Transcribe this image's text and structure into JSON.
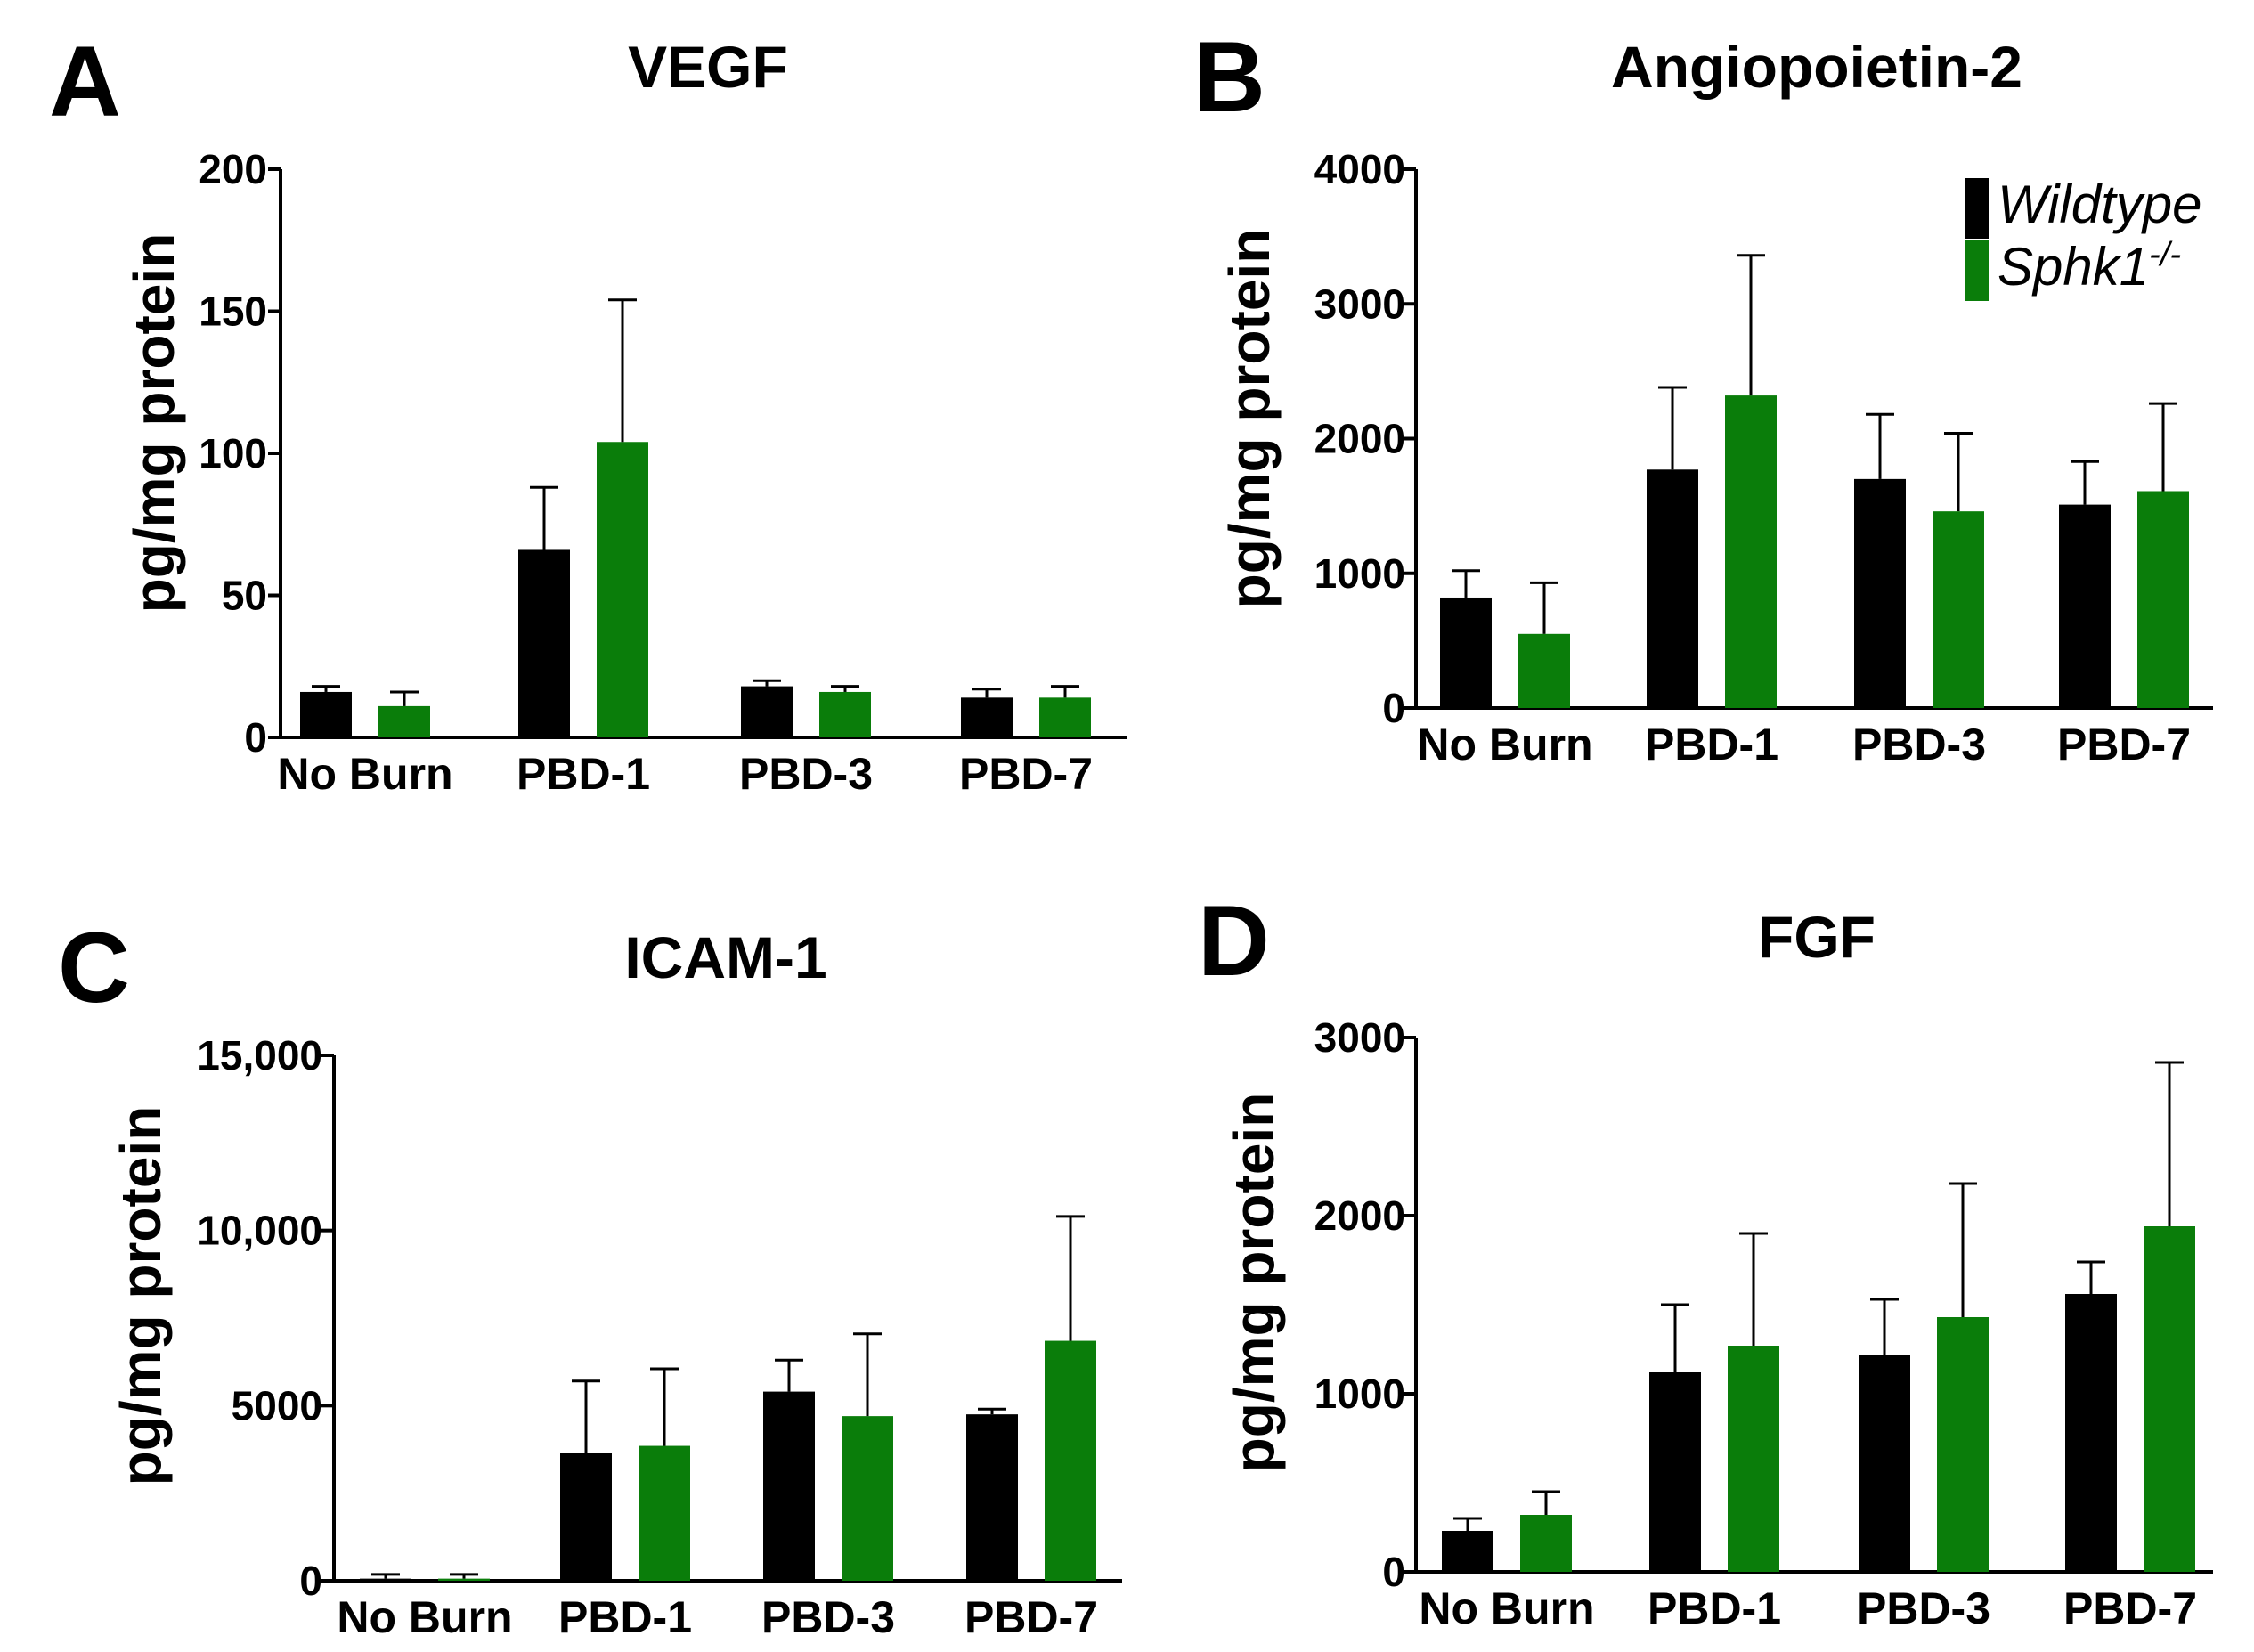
{
  "legend": {
    "entries": [
      {
        "name": "Wildtype",
        "color": "#000000"
      },
      {
        "name": "Sphk1",
        "superscript": "-/-",
        "color": "#0a7d0a"
      }
    ]
  },
  "chart_data": [
    {
      "panel": "A",
      "type": "bar",
      "title": "VEGF",
      "xlabel": "",
      "ylabel": "pg/mg protein",
      "ylim": [
        0,
        200
      ],
      "yticks": [
        0,
        50,
        100,
        150,
        200
      ],
      "ytick_labels": [
        "0",
        "50",
        "100",
        "150",
        "200"
      ],
      "categories": [
        "No Burn",
        "PBD-1",
        "PBD-3",
        "PBD-7"
      ],
      "series": [
        {
          "name": "Wildtype",
          "values": [
            16,
            66,
            18,
            14
          ],
          "errors": [
            2,
            22,
            2,
            3
          ]
        },
        {
          "name": "Sphk1-/-",
          "values": [
            11,
            104,
            16,
            14
          ],
          "errors": [
            5,
            50,
            2,
            4
          ]
        }
      ]
    },
    {
      "panel": "B",
      "type": "bar",
      "title": "Angiopoietin-2",
      "xlabel": "",
      "ylabel": "pg/mg protein",
      "ylim": [
        0,
        4000
      ],
      "yticks": [
        0,
        1000,
        2000,
        3000,
        4000
      ],
      "ytick_labels": [
        "0",
        "1000",
        "2000",
        "3000",
        "4000"
      ],
      "categories": [
        "No Burn",
        "PBD-1",
        "PBD-3",
        "PBD-7"
      ],
      "series": [
        {
          "name": "Wildtype",
          "values": [
            820,
            1770,
            1700,
            1510
          ],
          "errors": [
            200,
            610,
            480,
            320
          ]
        },
        {
          "name": "Sphk1-/-",
          "values": [
            550,
            2320,
            1460,
            1610
          ],
          "errors": [
            380,
            1040,
            580,
            650
          ]
        }
      ]
    },
    {
      "panel": "C",
      "type": "bar",
      "title": "ICAM-1",
      "xlabel": "",
      "ylabel": "pg/mg protein",
      "ylim": [
        0,
        15000
      ],
      "yticks": [
        0,
        5000,
        10000,
        15000
      ],
      "ytick_labels": [
        "0",
        "5000",
        "10,000",
        "15,000"
      ],
      "categories": [
        "No Burn",
        "PBD-1",
        "PBD-3",
        "PBD-7"
      ],
      "series": [
        {
          "name": "Wildtype",
          "values": [
            60,
            3650,
            5400,
            4750
          ],
          "errors": [
            120,
            2050,
            900,
            150
          ]
        },
        {
          "name": "Sphk1-/-",
          "values": [
            60,
            3850,
            4700,
            6850
          ],
          "errors": [
            120,
            2200,
            2350,
            3550
          ]
        }
      ]
    },
    {
      "panel": "D",
      "type": "bar",
      "title": "FGF",
      "xlabel": "",
      "ylabel": "pg/mg protein",
      "ylim": [
        0,
        3000
      ],
      "yticks": [
        0,
        1000,
        2000,
        3000
      ],
      "ytick_labels": [
        "0",
        "1000",
        "2000",
        "3000"
      ],
      "categories": [
        "No Burn",
        "PBD-1",
        "PBD-3",
        "PBD-7"
      ],
      "series": [
        {
          "name": "Wildtype",
          "values": [
            230,
            1120,
            1220,
            1560
          ],
          "errors": [
            70,
            380,
            310,
            180
          ]
        },
        {
          "name": "Sphk1-/-",
          "values": [
            320,
            1270,
            1430,
            1940
          ],
          "errors": [
            130,
            630,
            750,
            920
          ]
        }
      ]
    }
  ]
}
